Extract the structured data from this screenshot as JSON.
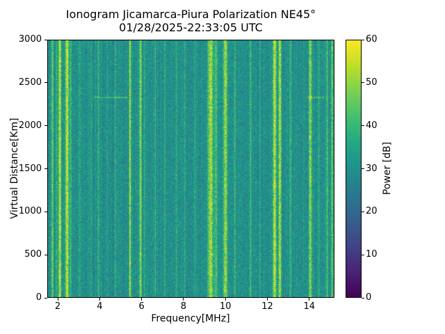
{
  "chart_data": {
    "type": "heatmap",
    "title": "Ionogram Jicamarca-Piura Polarization NE45°",
    "subtitle": "01/28/2025-22:33:05 UTC",
    "xlabel": "Frequency[MHz]",
    "ylabel": "Virtual Distance[Km]",
    "x_range": [
      1.5,
      15.2
    ],
    "y_range": [
      0,
      3000
    ],
    "x_ticks": [
      2,
      4,
      6,
      8,
      10,
      12,
      14
    ],
    "y_ticks": [
      0,
      500,
      1000,
      1500,
      2000,
      2500,
      3000
    ],
    "grid": false,
    "colorbar": {
      "label": "Power [dB]",
      "range": [
        0,
        60
      ],
      "ticks": [
        0,
        10,
        20,
        30,
        40,
        50,
        60
      ],
      "colormap": "viridis",
      "stops": [
        [
          0.0,
          "#440154"
        ],
        [
          0.1,
          "#482475"
        ],
        [
          0.2,
          "#414487"
        ],
        [
          0.3,
          "#355f8d"
        ],
        [
          0.4,
          "#2a788e"
        ],
        [
          0.5,
          "#21918c"
        ],
        [
          0.6,
          "#22a884"
        ],
        [
          0.7,
          "#44bf70"
        ],
        [
          0.8,
          "#7ad151"
        ],
        [
          0.9,
          "#bddf26"
        ],
        [
          1.0,
          "#fde725"
        ]
      ]
    },
    "noise": {
      "mean_db": 30,
      "pixel_sigma_db": 4,
      "column_sigma_db": 1.5,
      "seed": 42
    },
    "rfi_stripes": [
      {
        "freq": 1.75,
        "fwhm": 0.07,
        "amp": 18
      },
      {
        "freq": 1.95,
        "fwhm": 0.05,
        "amp": 10
      },
      {
        "freq": 2.1,
        "fwhm": 0.1,
        "amp": 26
      },
      {
        "freq": 2.45,
        "fwhm": 0.13,
        "amp": 27
      },
      {
        "freq": 2.62,
        "fwhm": 0.06,
        "amp": 13
      },
      {
        "freq": 3.05,
        "fwhm": 0.05,
        "amp": 8
      },
      {
        "freq": 3.6,
        "fwhm": 0.05,
        "amp": 6
      },
      {
        "freq": 3.95,
        "fwhm": 0.06,
        "amp": 9
      },
      {
        "freq": 4.35,
        "fwhm": 0.05,
        "amp": 7
      },
      {
        "freq": 4.75,
        "fwhm": 0.06,
        "amp": 8
      },
      {
        "freq": 5.45,
        "fwhm": 0.07,
        "amp": 24
      },
      {
        "freq": 5.95,
        "fwhm": 0.09,
        "amp": 22
      },
      {
        "freq": 6.15,
        "fwhm": 0.05,
        "amp": 10
      },
      {
        "freq": 6.65,
        "fwhm": 0.06,
        "amp": 9
      },
      {
        "freq": 7.1,
        "fwhm": 0.05,
        "amp": 7
      },
      {
        "freq": 7.65,
        "fwhm": 0.05,
        "amp": 7
      },
      {
        "freq": 8.05,
        "fwhm": 0.06,
        "amp": 8
      },
      {
        "freq": 8.55,
        "fwhm": 0.05,
        "amp": 7
      },
      {
        "freq": 9.3,
        "fwhm": 0.22,
        "amp": 22
      },
      {
        "freq": 9.55,
        "fwhm": 0.08,
        "amp": 14
      },
      {
        "freq": 10.0,
        "fwhm": 0.16,
        "amp": 20
      },
      {
        "freq": 10.45,
        "fwhm": 0.07,
        "amp": 12
      },
      {
        "freq": 11.2,
        "fwhm": 0.08,
        "amp": 10
      },
      {
        "freq": 11.65,
        "fwhm": 0.05,
        "amp": 7
      },
      {
        "freq": 12.35,
        "fwhm": 0.13,
        "amp": 26
      },
      {
        "freq": 12.6,
        "fwhm": 0.11,
        "amp": 24
      },
      {
        "freq": 13.1,
        "fwhm": 0.07,
        "amp": 10
      },
      {
        "freq": 14.05,
        "fwhm": 0.11,
        "amp": 20
      },
      {
        "freq": 14.45,
        "fwhm": 0.06,
        "amp": 9
      },
      {
        "freq": 14.85,
        "fwhm": 0.07,
        "amp": 12
      },
      {
        "freq": 15.1,
        "fwhm": 0.09,
        "amp": 16
      }
    ],
    "horizontal_segments": [
      {
        "distance_km": 2330,
        "half_width_km": 9,
        "freq_start": 3.7,
        "freq_end": 5.3,
        "amp": 11
      },
      {
        "distance_km": 2330,
        "half_width_km": 9,
        "freq_start": 13.9,
        "freq_end": 14.7,
        "amp": 11
      }
    ]
  },
  "layout_text": {
    "background_color": "#ffffff",
    "axes_edge_color": "#000000"
  }
}
